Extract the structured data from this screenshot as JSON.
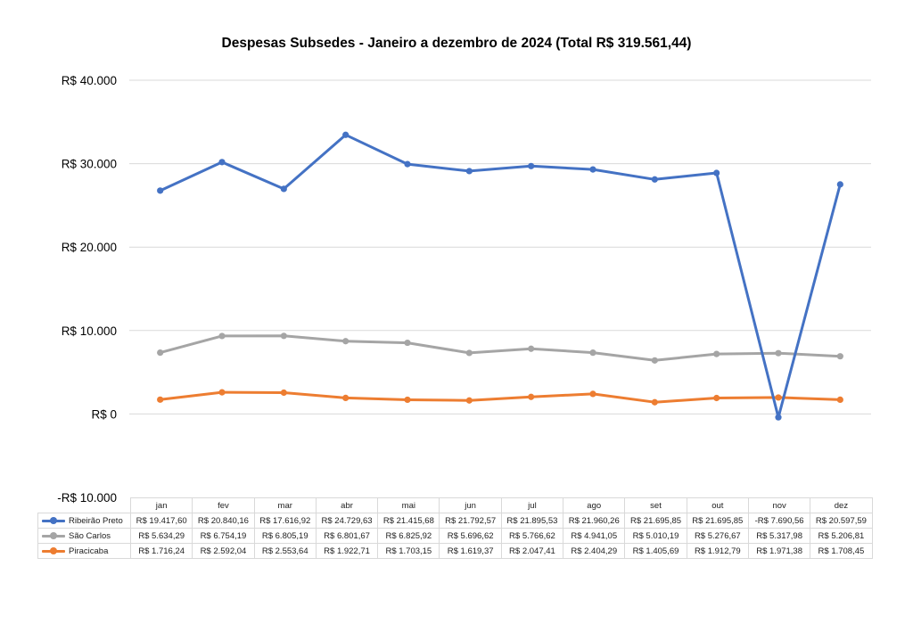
{
  "chart_data": {
    "type": "line",
    "title": "Despesas Subsedes - Janeiro a dezembro de 2024 (Total R$ 319.561,44)",
    "xlabel": "",
    "ylabel": "",
    "stacked": true,
    "ylim": [
      -10000,
      40000
    ],
    "yticks": [
      40000,
      30000,
      20000,
      10000,
      0,
      -10000
    ],
    "ytick_labels": [
      "R$ 40.000",
      "R$ 30.000",
      "R$ 20.000",
      "R$ 10.000",
      "R$ 0",
      "-R$ 10.000"
    ],
    "grid": true,
    "legend_placement": "data-table-bottom",
    "categories": [
      "jan",
      "fev",
      "mar",
      "abr",
      "mai",
      "jun",
      "jul",
      "ago",
      "set",
      "out",
      "nov",
      "dez"
    ],
    "series": [
      {
        "name": "Ribeirão Preto",
        "color": "#4472c4",
        "values": [
          19417.6,
          20840.16,
          17616.92,
          24729.63,
          21415.68,
          21792.57,
          21895.53,
          21960.26,
          21695.85,
          21695.85,
          -7690.56,
          20597.59
        ],
        "labels": [
          "R$ 19.417,60",
          "R$ 20.840,16",
          "R$ 17.616,92",
          "R$ 24.729,63",
          "R$ 21.415,68",
          "R$ 21.792,57",
          "R$ 21.895,53",
          "R$ 21.960,26",
          "R$ 21.695,85",
          "R$ 21.695,85",
          "-R$ 7.690,56",
          "R$ 20.597,59"
        ]
      },
      {
        "name": "São Carlos",
        "color": "#a5a5a5",
        "values": [
          5634.29,
          6754.19,
          6805.19,
          6801.67,
          6825.92,
          5696.62,
          5766.62,
          4941.05,
          5010.19,
          5276.67,
          5317.98,
          5206.81
        ],
        "labels": [
          "R$ 5.634,29",
          "R$ 6.754,19",
          "R$ 6.805,19",
          "R$ 6.801,67",
          "R$ 6.825,92",
          "R$ 5.696,62",
          "R$ 5.766,62",
          "R$ 4.941,05",
          "R$ 5.010,19",
          "R$ 5.276,67",
          "R$ 5.317,98",
          "R$ 5.206,81"
        ]
      },
      {
        "name": "Piracicaba",
        "color": "#ed7d31",
        "values": [
          1716.24,
          2592.04,
          2553.64,
          1922.71,
          1703.15,
          1619.37,
          2047.41,
          2404.29,
          1405.69,
          1912.79,
          1971.38,
          1708.45
        ],
        "labels": [
          "R$ 1.716,24",
          "R$ 2.592,04",
          "R$ 2.553,64",
          "R$ 1.922,71",
          "R$ 1.703,15",
          "R$ 1.619,37",
          "R$ 2.047,41",
          "R$ 2.404,29",
          "R$ 1.405,69",
          "R$ 1.912,79",
          "R$ 1.971,38",
          "R$ 1.708,45"
        ]
      }
    ]
  }
}
